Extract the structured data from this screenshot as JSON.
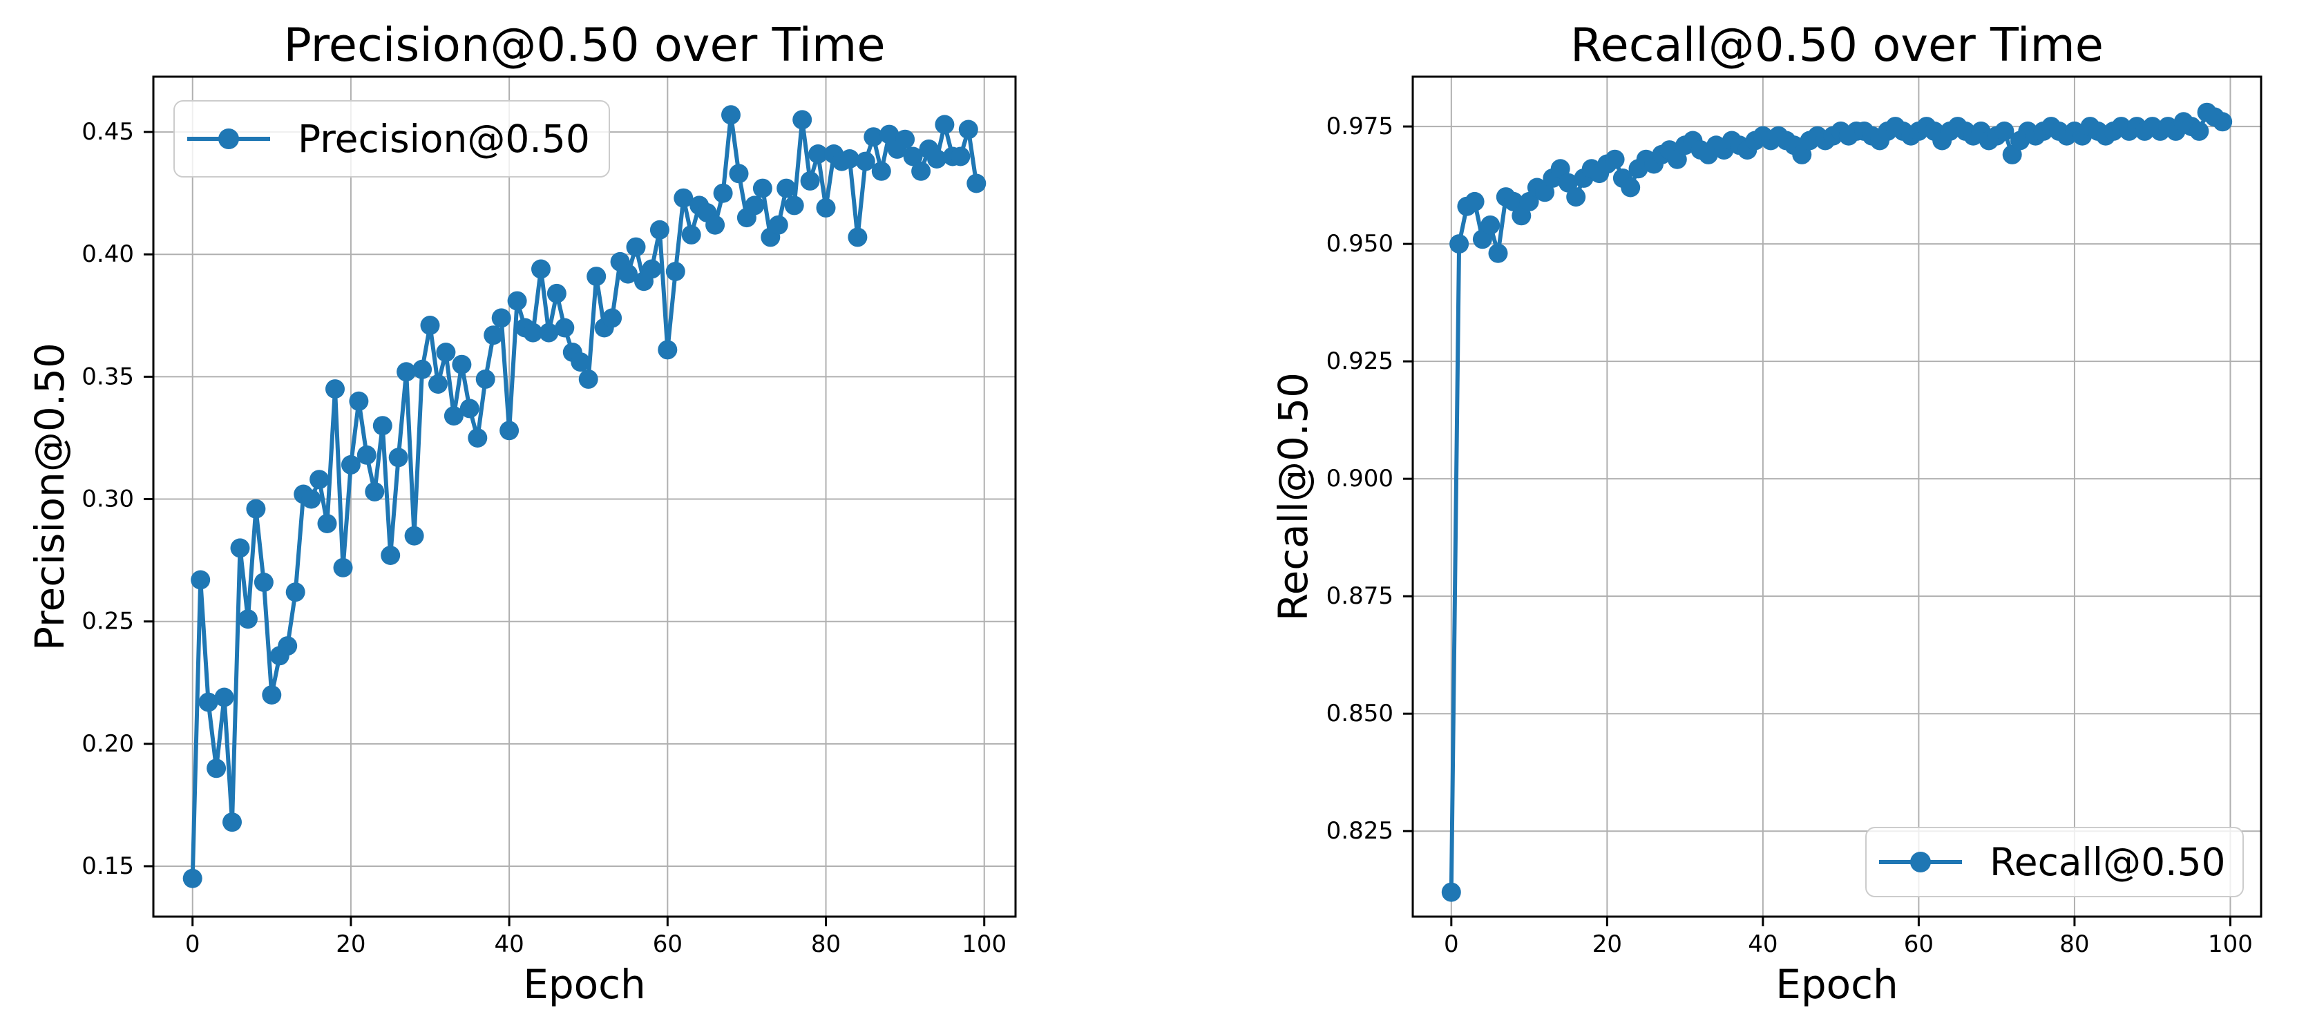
{
  "figure": {
    "background_color": "#ffffff",
    "text_color": "#000000",
    "grid_color": "#b0b0b0",
    "spine_color": "#000000",
    "accent_color": "#1f77b4"
  },
  "chart_data": [
    {
      "type": "line",
      "title": "Precision@0.50 over Time",
      "xlabel": "Epoch",
      "ylabel": "Precision@0.50",
      "series_name": "precision",
      "legend": {
        "label": "Precision@0.50",
        "position": "upper-left"
      },
      "grid": true,
      "line_color": "#1f77b4",
      "marker": "circle",
      "xlim": [
        -4.95,
        103.95
      ],
      "ylim": [
        0.1294,
        0.4726
      ],
      "xticks": [
        0,
        20,
        40,
        60,
        80,
        100
      ],
      "xtick_labels": [
        "0",
        "20",
        "40",
        "60",
        "80",
        "100"
      ],
      "yticks": [
        0.15,
        0.2,
        0.25,
        0.3,
        0.35,
        0.4,
        0.45
      ],
      "ytick_labels": [
        "0.15",
        "0.20",
        "0.25",
        "0.30",
        "0.35",
        "0.40",
        "0.45"
      ],
      "x": [
        0,
        1,
        2,
        3,
        4,
        5,
        6,
        7,
        8,
        9,
        10,
        11,
        12,
        13,
        14,
        15,
        16,
        17,
        18,
        19,
        20,
        21,
        22,
        23,
        24,
        25,
        26,
        27,
        28,
        29,
        30,
        31,
        32,
        33,
        34,
        35,
        36,
        37,
        38,
        39,
        40,
        41,
        42,
        43,
        44,
        45,
        46,
        47,
        48,
        49,
        50,
        51,
        52,
        53,
        54,
        55,
        56,
        57,
        58,
        59,
        60,
        61,
        62,
        63,
        64,
        65,
        66,
        67,
        68,
        69,
        70,
        71,
        72,
        73,
        74,
        75,
        76,
        77,
        78,
        79,
        80,
        81,
        82,
        83,
        84,
        85,
        86,
        87,
        88,
        89,
        90,
        91,
        92,
        93,
        94,
        95,
        96,
        97,
        98,
        99
      ],
      "values": [
        0.145,
        0.267,
        0.217,
        0.19,
        0.219,
        0.168,
        0.28,
        0.251,
        0.296,
        0.266,
        0.22,
        0.236,
        0.24,
        0.262,
        0.302,
        0.3,
        0.308,
        0.29,
        0.345,
        0.272,
        0.314,
        0.34,
        0.318,
        0.303,
        0.33,
        0.277,
        0.317,
        0.352,
        0.285,
        0.353,
        0.371,
        0.347,
        0.36,
        0.334,
        0.355,
        0.337,
        0.325,
        0.349,
        0.367,
        0.374,
        0.328,
        0.381,
        0.37,
        0.368,
        0.394,
        0.368,
        0.384,
        0.37,
        0.36,
        0.356,
        0.349,
        0.391,
        0.37,
        0.374,
        0.397,
        0.392,
        0.403,
        0.389,
        0.394,
        0.41,
        0.361,
        0.393,
        0.423,
        0.408,
        0.42,
        0.417,
        0.412,
        0.425,
        0.457,
        0.433,
        0.415,
        0.42,
        0.427,
        0.407,
        0.412,
        0.427,
        0.42,
        0.455,
        0.43,
        0.441,
        0.419,
        0.441,
        0.438,
        0.439,
        0.407,
        0.438,
        0.448,
        0.434,
        0.449,
        0.443,
        0.447,
        0.44,
        0.434,
        0.443,
        0.439,
        0.453,
        0.44,
        0.44,
        0.451,
        0.429
      ]
    },
    {
      "type": "line",
      "title": "Recall@0.50 over Time",
      "xlabel": "Epoch",
      "ylabel": "Recall@0.50",
      "series_name": "recall",
      "legend": {
        "label": "Recall@0.50",
        "position": "lower-right"
      },
      "grid": true,
      "line_color": "#1f77b4",
      "marker": "circle",
      "xlim": [
        -4.95,
        103.95
      ],
      "ylim": [
        0.8068,
        0.9856
      ],
      "xticks": [
        0,
        20,
        40,
        60,
        80,
        100
      ],
      "xtick_labels": [
        "0",
        "20",
        "40",
        "60",
        "80",
        "100"
      ],
      "yticks": [
        0.825,
        0.85,
        0.875,
        0.9,
        0.925,
        0.95,
        0.975
      ],
      "ytick_labels": [
        "0.825",
        "0.850",
        "0.875",
        "0.900",
        "0.925",
        "0.950",
        "0.975"
      ],
      "x": [
        0,
        1,
        2,
        3,
        4,
        5,
        6,
        7,
        8,
        9,
        10,
        11,
        12,
        13,
        14,
        15,
        16,
        17,
        18,
        19,
        20,
        21,
        22,
        23,
        24,
        25,
        26,
        27,
        28,
        29,
        30,
        31,
        32,
        33,
        34,
        35,
        36,
        37,
        38,
        39,
        40,
        41,
        42,
        43,
        44,
        45,
        46,
        47,
        48,
        49,
        50,
        51,
        52,
        53,
        54,
        55,
        56,
        57,
        58,
        59,
        60,
        61,
        62,
        63,
        64,
        65,
        66,
        67,
        68,
        69,
        70,
        71,
        72,
        73,
        74,
        75,
        76,
        77,
        78,
        79,
        80,
        81,
        82,
        83,
        84,
        85,
        86,
        87,
        88,
        89,
        90,
        91,
        92,
        93,
        94,
        95,
        96,
        97,
        98,
        99
      ],
      "values": [
        0.812,
        0.95,
        0.958,
        0.959,
        0.951,
        0.954,
        0.948,
        0.96,
        0.959,
        0.956,
        0.959,
        0.962,
        0.961,
        0.964,
        0.966,
        0.963,
        0.96,
        0.964,
        0.966,
        0.965,
        0.967,
        0.968,
        0.964,
        0.962,
        0.966,
        0.968,
        0.967,
        0.969,
        0.97,
        0.968,
        0.971,
        0.972,
        0.97,
        0.969,
        0.971,
        0.97,
        0.972,
        0.971,
        0.97,
        0.972,
        0.973,
        0.972,
        0.973,
        0.972,
        0.971,
        0.969,
        0.972,
        0.973,
        0.972,
        0.973,
        0.974,
        0.973,
        0.974,
        0.974,
        0.973,
        0.972,
        0.974,
        0.975,
        0.974,
        0.973,
        0.974,
        0.975,
        0.974,
        0.972,
        0.974,
        0.975,
        0.974,
        0.973,
        0.974,
        0.972,
        0.973,
        0.974,
        0.969,
        0.972,
        0.974,
        0.973,
        0.974,
        0.975,
        0.974,
        0.973,
        0.974,
        0.973,
        0.975,
        0.974,
        0.973,
        0.974,
        0.975,
        0.974,
        0.975,
        0.974,
        0.975,
        0.974,
        0.975,
        0.974,
        0.976,
        0.975,
        0.974,
        0.978,
        0.977,
        0.976
      ]
    }
  ]
}
